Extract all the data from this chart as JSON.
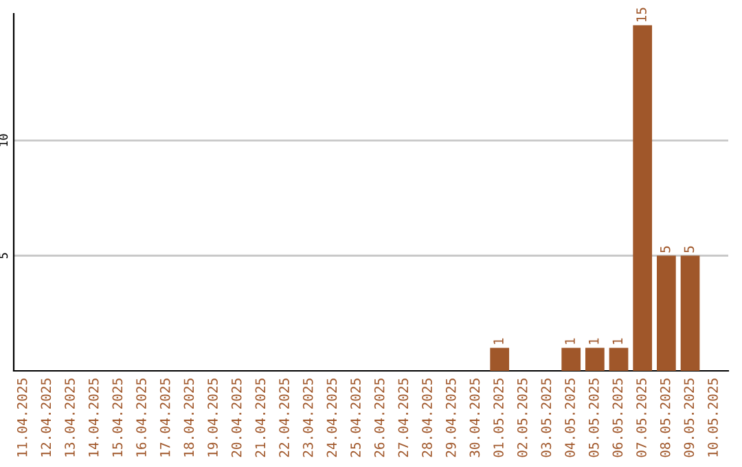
{
  "chart_data": {
    "type": "bar",
    "categories": [
      "11.04.2025",
      "12.04.2025",
      "13.04.2025",
      "14.04.2025",
      "15.04.2025",
      "16.04.2025",
      "17.04.2025",
      "18.04.2025",
      "19.04.2025",
      "20.04.2025",
      "21.04.2025",
      "22.04.2025",
      "23.04.2025",
      "24.04.2025",
      "25.04.2025",
      "26.04.2025",
      "27.04.2025",
      "28.04.2025",
      "29.04.2025",
      "30.04.2025",
      "01.05.2025",
      "02.05.2025",
      "03.05.2025",
      "04.05.2025",
      "05.05.2025",
      "06.05.2025",
      "07.05.2025",
      "08.05.2025",
      "09.05.2025",
      "10.05.2025"
    ],
    "values": [
      null,
      null,
      null,
      null,
      null,
      null,
      null,
      null,
      null,
      null,
      null,
      null,
      null,
      null,
      null,
      null,
      null,
      null,
      null,
      null,
      1,
      null,
      null,
      1,
      1,
      1,
      15,
      5,
      5,
      null
    ],
    "color": "#a0572a",
    "ylim": [
      0,
      15.5
    ],
    "yticks": [
      5,
      10
    ],
    "grid": "y",
    "data_labels": true
  }
}
